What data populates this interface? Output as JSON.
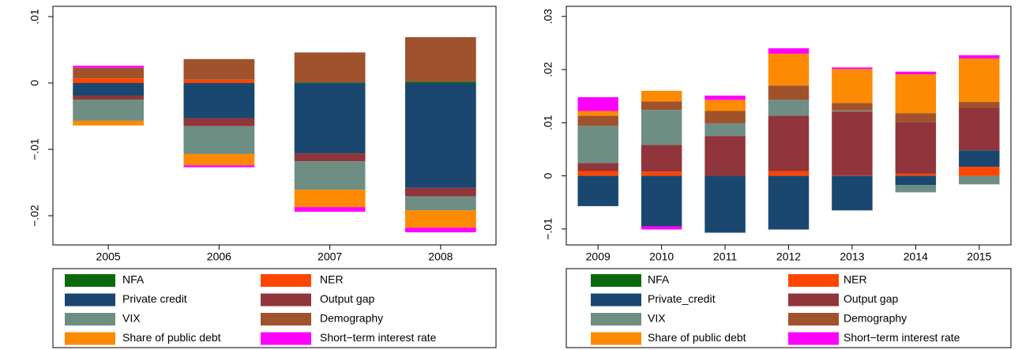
{
  "chart_data": [
    {
      "type": "bar",
      "stacked": true,
      "categories": [
        "2005",
        "2006",
        "2007",
        "2008"
      ],
      "ylim": [
        -0.0244,
        0.01155
      ],
      "yticks": [
        {
          "value": -0.02,
          "label": "−.02"
        },
        {
          "value": -0.01,
          "label": "−.01"
        },
        0,
        {
          "value": 0.01,
          "label": ".01"
        }
      ],
      "series": [
        {
          "name": "NFA",
          "color": "#0b6b0b",
          "values": [
            0,
            0,
            0.0001,
            0.0002
          ]
        },
        {
          "name": "NER",
          "color": "#ff4500",
          "values": [
            0.0007,
            0.0005,
            0,
            0
          ]
        },
        {
          "name": "Private credit",
          "color": "#1a476f",
          "values": [
            -0.0019,
            -0.0053,
            -0.0106,
            -0.0158
          ]
        },
        {
          "name": "Output gap",
          "color": "#90353b",
          "values": [
            -0.0006,
            -0.0012,
            -0.0012,
            -0.0013
          ]
        },
        {
          "name": "VIX",
          "color": "#6e8e84",
          "values": [
            -0.0032,
            -0.0042,
            -0.0043,
            -0.0021
          ]
        },
        {
          "name": "Demography",
          "color": "#a0522d",
          "values": [
            0.0016,
            0.0031,
            0.0045,
            0.0067
          ]
        },
        {
          "name": "Share of public debt",
          "color": "#fd8a00",
          "values": [
            -0.0007,
            -0.0017,
            -0.0026,
            -0.0026
          ]
        },
        {
          "name": "Short−term interest rate",
          "color": "#ff00ff",
          "values": [
            0.0003,
            -0.0003,
            -0.0007,
            -0.0007
          ]
        }
      ]
    },
    {
      "type": "bar",
      "stacked": true,
      "categories": [
        "2009",
        "2010",
        "2011",
        "2012",
        "2013",
        "2014",
        "2015"
      ],
      "ylim": [
        -0.013,
        0.0319
      ],
      "yticks": [
        {
          "value": -0.01,
          "label": "−.01"
        },
        0,
        {
          "value": 0.01,
          "label": ".01"
        },
        {
          "value": 0.02,
          "label": ".02"
        },
        {
          "value": 0.03,
          "label": ".03"
        }
      ],
      "series": [
        {
          "name": "NFA",
          "color": "#0b6b0b",
          "values": [
            0,
            0,
            0,
            0,
            0,
            0,
            0
          ]
        },
        {
          "name": "NER",
          "color": "#ff4500",
          "values": [
            0.0009,
            0.0008,
            0,
            0.0009,
            0.0001,
            0.0004,
            0.0017
          ]
        },
        {
          "name": "Private_credit",
          "color": "#1a476f",
          "values": [
            -0.0057,
            -0.0095,
            -0.0107,
            -0.0101,
            -0.0065,
            -0.0017,
            0.0031
          ]
        },
        {
          "name": "Output gap",
          "color": "#90353b",
          "values": [
            0.0015,
            0.005,
            0.0075,
            0.0104,
            0.012,
            0.0097,
            0.008
          ]
        },
        {
          "name": "VIX",
          "color": "#6e8e84",
          "values": [
            0.007,
            0.0066,
            0.0024,
            0.003,
            0.0002,
            -0.0014,
            -0.0016
          ]
        },
        {
          "name": "Demography",
          "color": "#a0522d",
          "values": [
            0.0019,
            0.0016,
            0.0023,
            0.0027,
            0.0014,
            0.0017,
            0.0011
          ]
        },
        {
          "name": "Share of public debt",
          "color": "#fd8a00",
          "values": [
            0.0009,
            0.002,
            0.0021,
            0.006,
            0.0064,
            0.0073,
            0.0082
          ]
        },
        {
          "name": "Short−term interest rate",
          "color": "#ff00ff",
          "values": [
            0.0026,
            -0.0006,
            0.0008,
            0.001,
            0.0003,
            0.0005,
            0.0006
          ]
        }
      ]
    }
  ]
}
